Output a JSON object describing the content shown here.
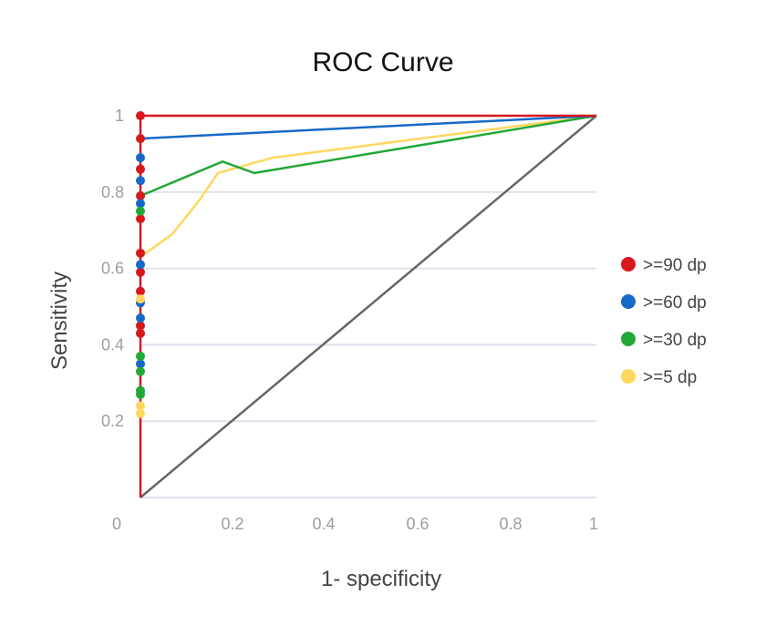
{
  "chart_data": {
    "type": "line",
    "title": "ROC Curve",
    "xlabel": "1- specificity",
    "ylabel": "Sensitivity",
    "xlim": [
      0,
      1
    ],
    "ylim": [
      0,
      1
    ],
    "x_ticks": [
      "0",
      "0.2",
      "0.4",
      "0.6",
      "0.8",
      "1"
    ],
    "y_ticks": [
      "0.2",
      "0.4",
      "0.6",
      "0.8",
      "1"
    ],
    "grid": true,
    "legend_position": "right",
    "diagonal_color": "#666666",
    "series": [
      {
        "name": ">=90 dp",
        "color": "#d7191c",
        "points": [
          [
            0,
            0
          ],
          [
            0,
            0.43
          ],
          [
            0,
            0.45
          ],
          [
            0,
            0.54
          ],
          [
            0,
            0.59
          ],
          [
            0,
            0.64
          ],
          [
            0,
            0.73
          ],
          [
            0,
            0.79
          ],
          [
            0,
            0.86
          ],
          [
            0,
            0.94
          ],
          [
            0,
            1.0
          ],
          [
            0,
            1.0
          ],
          [
            1,
            1.0
          ]
        ],
        "marker_points": [
          [
            0,
            1.0
          ],
          [
            0,
            0.94
          ],
          [
            0,
            0.86
          ],
          [
            0,
            0.79
          ],
          [
            0,
            0.73
          ],
          [
            0,
            0.64
          ],
          [
            0,
            0.59
          ],
          [
            0,
            0.54
          ],
          [
            0,
            0.45
          ],
          [
            0,
            0.43
          ]
        ]
      },
      {
        "name": ">=60 dp",
        "color": "#1769c9",
        "points": [
          [
            0,
            0.94
          ],
          [
            1,
            1.0
          ]
        ],
        "marker_points": [
          [
            0,
            0.89
          ],
          [
            0,
            0.83
          ],
          [
            0,
            0.77
          ],
          [
            0,
            0.61
          ],
          [
            0,
            0.51
          ],
          [
            0,
            0.47
          ],
          [
            0,
            0.35
          ]
        ]
      },
      {
        "name": ">=30 dp",
        "color": "#22a837",
        "points": [
          [
            0,
            0.79
          ],
          [
            0.18,
            0.88
          ],
          [
            0.25,
            0.85
          ],
          [
            1,
            1.0
          ]
        ],
        "marker_points": [
          [
            0,
            0.75
          ],
          [
            0,
            0.37
          ],
          [
            0,
            0.33
          ],
          [
            0,
            0.28
          ],
          [
            0,
            0.27
          ]
        ]
      },
      {
        "name": ">=5 dp",
        "color": "#ffd75e",
        "points": [
          [
            0,
            0.63
          ],
          [
            0.07,
            0.69
          ],
          [
            0.13,
            0.78
          ],
          [
            0.17,
            0.85
          ],
          [
            0.29,
            0.89
          ],
          [
            1,
            1.0
          ]
        ],
        "marker_points": [
          [
            0,
            0.52
          ],
          [
            0,
            0.24
          ],
          [
            0,
            0.22
          ]
        ]
      }
    ]
  }
}
